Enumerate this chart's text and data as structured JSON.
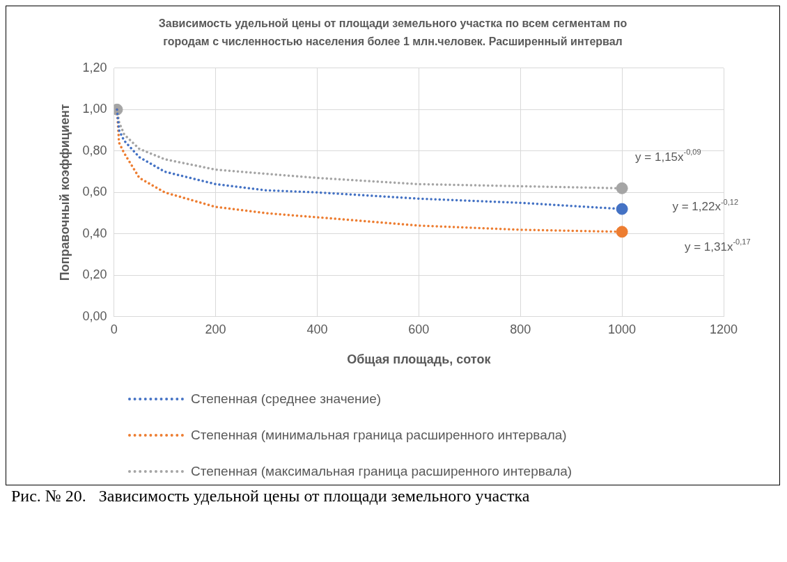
{
  "chart_data": {
    "type": "line",
    "title": "Зависимость удельной цены от площади земельного участка по всем сегментам по городам с численностью населения более 1 млн.человек. Расширенный интервал",
    "xlabel": "Общая площадь, соток",
    "ylabel": "Поправочный коэффициент",
    "xlim": [
      0,
      1200
    ],
    "xticks": [
      0,
      200,
      400,
      600,
      800,
      1000,
      1200
    ],
    "ylim": [
      0,
      1.2
    ],
    "yticks": [
      {
        "value": 0,
        "label": "0,00"
      },
      {
        "value": 0.2,
        "label": "0,20"
      },
      {
        "value": 0.4,
        "label": "0,40"
      },
      {
        "value": 0.6,
        "label": "0,60"
      },
      {
        "value": 0.8,
        "label": "0,80"
      },
      {
        "value": 1,
        "label": "1,00"
      },
      {
        "value": 1.2,
        "label": "1,20"
      }
    ],
    "grid": true,
    "legend": "bottom",
    "series": [
      {
        "name": "Степенная (среднее значение)",
        "type": "line",
        "color": "#4472c4",
        "line_style": "dotted",
        "marker": "none",
        "x": [
          6,
          10,
          20,
          50,
          100,
          200,
          300,
          400,
          600,
          800,
          1000
        ],
        "values": [
          1.0,
          0.9,
          0.85,
          0.77,
          0.7,
          0.64,
          0.61,
          0.6,
          0.57,
          0.55,
          0.52
        ]
      },
      {
        "name": "Степенная (минимальная граница расширенного интервала)",
        "type": "line",
        "color": "#ed7d31",
        "line_style": "dotted",
        "marker": "none",
        "x": [
          6,
          10,
          20,
          50,
          100,
          200,
          300,
          400,
          600,
          800,
          1000
        ],
        "values": [
          1.0,
          0.84,
          0.79,
          0.67,
          0.6,
          0.53,
          0.5,
          0.48,
          0.44,
          0.42,
          0.41
        ]
      },
      {
        "name": "Степенная (максимальная граница расширенного интервала)",
        "type": "line",
        "color": "#a5a5a5",
        "line_style": "dotted",
        "marker": "none",
        "x": [
          6,
          10,
          20,
          50,
          100,
          200,
          300,
          400,
          600,
          800,
          1000
        ],
        "values": [
          1.0,
          0.94,
          0.88,
          0.81,
          0.76,
          0.71,
          0.69,
          0.67,
          0.64,
          0.63,
          0.62
        ]
      },
      {
        "type": "scatter",
        "color": "#4472c4",
        "marker": "circle",
        "x": [
          1000
        ],
        "values": [
          0.52
        ]
      },
      {
        "type": "scatter",
        "color": "#ed7d31",
        "marker": "circle",
        "x": [
          1000
        ],
        "values": [
          0.41
        ]
      },
      {
        "type": "scatter",
        "color": "#a5a5a5",
        "marker": "circle",
        "x": [
          6,
          1000
        ],
        "values": [
          1.0,
          0.62
        ]
      }
    ],
    "annotations": [
      "y = 1,15x$^{-0,09}$",
      "y = 1,22x$^{-0,12}$",
      "y = 1,31x$^{-0,17}$",
      "Рис. № 20.   Зависимость удельной цены от площади земельного участка"
    ]
  }
}
